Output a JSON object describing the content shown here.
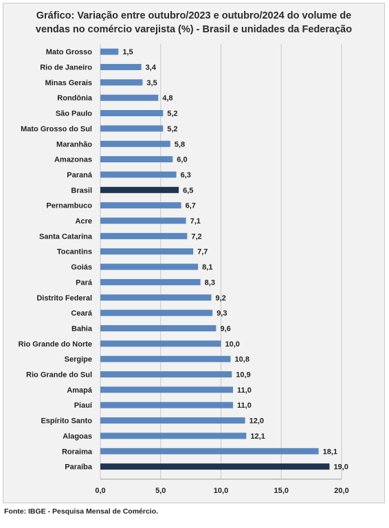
{
  "title": {
    "line1": "Gráfico: Variação entre outubro/2023 e outubro/2024 do volume de",
    "line2": "vendas no comércio varejista (%)  - Brasil e  unidades da Federação"
  },
  "source": "Fonte: IBGE - Pesquisa Mensal de Comércio.",
  "colors": {
    "bar": "#5b87bf",
    "highlight": "#1f3450",
    "grid": "#c8c8c8",
    "panel": "#f2f2f2"
  },
  "chart_data": {
    "type": "bar",
    "orientation": "horizontal",
    "categories": [
      "Mato Grosso",
      "Rio de Janeiro",
      "Minas Gerais",
      "Rondônia",
      "São Paulo",
      "Mato Grosso do Sul",
      "Maranhão",
      "Amazonas",
      "Paraná",
      "Brasil",
      "Pernambuco",
      "Acre",
      "Santa Catarina",
      "Tocantins",
      "Goiás",
      "Pará",
      "Distrito Federal",
      "Ceará",
      "Bahia",
      "Rio Grande do Norte",
      "Sergipe",
      "Rio Grande do Sul",
      "Amapá",
      "Piauí",
      "Espírito Santo",
      "Alagoas",
      "Roraima",
      "Paraíba"
    ],
    "values": [
      1.5,
      3.4,
      3.5,
      4.8,
      5.2,
      5.2,
      5.8,
      6.0,
      6.3,
      6.5,
      6.7,
      7.1,
      7.2,
      7.7,
      8.1,
      8.3,
      9.2,
      9.3,
      9.6,
      10.0,
      10.8,
      10.9,
      11.0,
      11.0,
      12.0,
      12.1,
      18.1,
      19.0
    ],
    "value_labels": [
      "1,5",
      "3,4",
      "3,5",
      "4,8",
      "5,2",
      "5,2",
      "5,8",
      "6,0",
      "6,3",
      "6,5",
      "6,7",
      "7,1",
      "7,2",
      "7,7",
      "8,1",
      "8,3",
      "9,2",
      "9,3",
      "9,6",
      "10,0",
      "10,8",
      "10,9",
      "11,0",
      "11,0",
      "12,0",
      "12,1",
      "18,1",
      "19,0"
    ],
    "highlighted": [
      "Brasil",
      "Paraíba"
    ],
    "xlim": [
      0,
      20
    ],
    "xticks": [
      0,
      5,
      10,
      15,
      20
    ],
    "xtick_labels": [
      "0,0",
      "5,0",
      "10,0",
      "15,0",
      "20,0"
    ],
    "grid": "vertical"
  }
}
